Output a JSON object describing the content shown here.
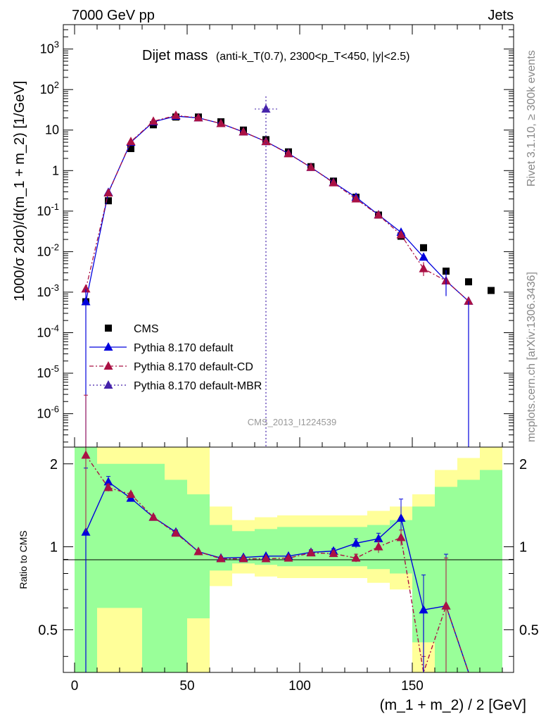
{
  "header": {
    "left": "7000 GeV pp",
    "right": "Jets"
  },
  "side_labels": {
    "rivet": "Rivet 3.1.10, ≥ 300k events",
    "mcplots": "mcplots.cern.ch [arXiv:1306.3436]"
  },
  "chart_data": [
    {
      "panel": "main",
      "type": "line",
      "title_main": "Dijet mass",
      "title_sub": "(anti-k_T(0.7), 2300<p_T<450, |y|<2.5)",
      "watermark": "CMS_2013_I1224539",
      "ylabel": "1000/σ 2dσ)/d(m_1 + m_2) [1/GeV]",
      "yscale": "log",
      "ylim": [
        1.5e-07,
        4000
      ],
      "xlim": [
        -5,
        195
      ],
      "y_tick_labels": [
        "10^-6",
        "10^-5",
        "10^-4",
        "10^-3",
        "10^-2",
        "10^-1",
        "1",
        "10",
        "10^2",
        "10^3"
      ],
      "legend_placement": "lower-left",
      "x": [
        5,
        15,
        25,
        35,
        45,
        55,
        65,
        75,
        85,
        95,
        105,
        115,
        125,
        135,
        145,
        155,
        165,
        175,
        185
      ],
      "series": [
        {
          "name": "CMS",
          "style": "data-squares",
          "color": "#000000",
          "values": [
            0.00058,
            0.18,
            3.5,
            13.5,
            21,
            21,
            16,
            10,
            5.8,
            2.9,
            1.25,
            0.55,
            0.22,
            0.08,
            0.024,
            0.0125,
            0.0033,
            0.0018,
            0.0011
          ]
        },
        {
          "name": "Pythia 8.170 default",
          "style": "solid",
          "color": "#0000dd",
          "values": [
            0.00058,
            0.29,
            5.0,
            16.0,
            22,
            20,
            14.5,
            9.0,
            5.2,
            2.65,
            1.2,
            0.51,
            0.22,
            0.081,
            0.03,
            0.0073,
            0.0019,
            0.0006,
            null
          ]
        },
        {
          "name": "Pythia 8.170 default-CD",
          "style": "dash-dot",
          "color": "#aa1144",
          "values": [
            0.0012,
            0.28,
            5.2,
            16.5,
            23,
            20,
            14.5,
            9.0,
            5.2,
            2.6,
            1.2,
            0.5,
            0.2,
            0.08,
            0.026,
            0.0038,
            0.0019,
            0.0006,
            null
          ]
        },
        {
          "name": "Pythia 8.170 default-MBR",
          "style": "dotted",
          "color": "#4422aa",
          "values": [
            null,
            null,
            null,
            null,
            null,
            null,
            null,
            null,
            33,
            null,
            null,
            null,
            null,
            null,
            null,
            null,
            null,
            null,
            null
          ]
        }
      ]
    },
    {
      "panel": "ratio",
      "type": "line",
      "ylabel": "Ratio to CMS",
      "xlabel": "(m_1 + m_2) / 2 [GeV]",
      "ylim": [
        0.35,
        2.3
      ],
      "x_ticks": [
        0,
        50,
        100,
        150
      ],
      "y_ticks": [
        0.5,
        1,
        2
      ],
      "reference_line": 1,
      "bands": {
        "colors": {
          "inner": "#99ff99",
          "outer": "#ffff99"
        },
        "bins": [
          [
            0,
            10
          ],
          [
            10,
            20
          ],
          [
            20,
            30
          ],
          [
            30,
            40
          ],
          [
            40,
            50
          ],
          [
            50,
            60
          ],
          [
            60,
            70
          ],
          [
            70,
            80
          ],
          [
            80,
            90
          ],
          [
            90,
            100
          ],
          [
            100,
            110
          ],
          [
            110,
            120
          ],
          [
            120,
            130
          ],
          [
            130,
            140
          ],
          [
            140,
            150
          ],
          [
            150,
            160
          ],
          [
            160,
            170
          ],
          [
            170,
            180
          ],
          [
            180,
            190
          ]
        ],
        "outer": [
          [
            0.35,
            2.3
          ],
          [
            0.35,
            2.3
          ],
          [
            0.35,
            2.3
          ],
          [
            0.35,
            2.3
          ],
          [
            0.35,
            2.3
          ],
          [
            0.35,
            2.3
          ],
          [
            0.72,
            1.4
          ],
          [
            0.8,
            1.25
          ],
          [
            0.78,
            1.28
          ],
          [
            0.77,
            1.3
          ],
          [
            0.77,
            1.3
          ],
          [
            0.77,
            1.3
          ],
          [
            0.77,
            1.3
          ],
          [
            0.74,
            1.35
          ],
          [
            0.7,
            1.4
          ],
          [
            0.35,
            1.55
          ],
          [
            0.35,
            1.9
          ],
          [
            0.35,
            2.1
          ],
          [
            0.35,
            2.3
          ]
        ],
        "inner": [
          [
            0.35,
            2.3
          ],
          [
            0.6,
            2.0
          ],
          [
            0.6,
            2.0
          ],
          [
            0.35,
            2.0
          ],
          [
            0.35,
            1.75
          ],
          [
            0.55,
            1.55
          ],
          [
            0.82,
            1.2
          ],
          [
            0.87,
            1.14
          ],
          [
            0.86,
            1.16
          ],
          [
            0.85,
            1.18
          ],
          [
            0.85,
            1.18
          ],
          [
            0.85,
            1.18
          ],
          [
            0.85,
            1.18
          ],
          [
            0.83,
            1.2
          ],
          [
            0.8,
            1.25
          ],
          [
            0.45,
            1.4
          ],
          [
            0.35,
            1.65
          ],
          [
            0.35,
            1.75
          ],
          [
            0.35,
            1.9
          ]
        ]
      },
      "x": [
        5,
        15,
        25,
        35,
        45,
        55,
        65,
        75,
        85,
        95,
        105,
        115,
        125,
        135,
        145,
        155,
        165,
        175
      ],
      "series": [
        {
          "name": "Pythia 8.170 default",
          "style": "solid",
          "color": "#0000dd",
          "values": [
            1.13,
            1.72,
            1.5,
            1.28,
            1.13,
            0.96,
            0.91,
            0.915,
            0.925,
            0.925,
            0.955,
            0.965,
            1.03,
            1.07,
            1.27,
            0.59,
            0.61,
            0.33
          ],
          "errors": [
            0.8,
            0.08,
            0.03,
            0.02,
            0.02,
            0.01,
            0.01,
            0.01,
            0.01,
            0.01,
            0.02,
            0.02,
            0.04,
            0.05,
            0.22,
            0.2,
            0.33,
            0.0
          ]
        },
        {
          "name": "Pythia 8.170 default-CD",
          "style": "dash-dot",
          "color": "#aa1144",
          "values": [
            2.15,
            1.64,
            1.55,
            1.28,
            1.12,
            0.96,
            0.905,
            0.905,
            0.905,
            0.91,
            0.95,
            0.945,
            0.91,
            1.0,
            1.08,
            0.3,
            0.61,
            0.3
          ],
          "errors": [
            1.4,
            0.05,
            0.02,
            0.02,
            0.01,
            0.01,
            0.01,
            0.01,
            0.01,
            0.01,
            0.02,
            0.02,
            0.03,
            0.05,
            0.07,
            0.1,
            0.3,
            0.0
          ]
        }
      ]
    }
  ]
}
